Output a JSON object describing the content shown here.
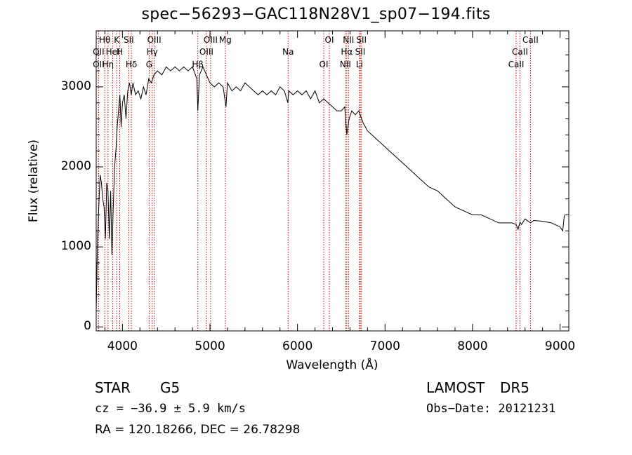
{
  "chart_data": {
    "type": "line",
    "title": "spec−56293−GAC118N28V1_sp07−194.fits",
    "xlabel": "Wavelength (Å)",
    "ylabel": "Flux (relative)",
    "xlim": [
      3700,
      9100
    ],
    "ylim": [
      -50,
      3700
    ],
    "xticks": [
      4000,
      5000,
      6000,
      7000,
      8000,
      9000
    ],
    "yticks": [
      0,
      1000,
      2000,
      3000
    ],
    "grid": false,
    "series": [
      {
        "x": [
          3700,
          3715,
          3730,
          3745,
          3760,
          3775,
          3790,
          3805,
          3820,
          3835,
          3850,
          3865,
          3880,
          3895,
          3910,
          3925,
          3940,
          3955,
          3970,
          3985,
          4000,
          4020,
          4040,
          4060,
          4080,
          4100,
          4120,
          4150,
          4180,
          4210,
          4240,
          4270,
          4300,
          4330,
          4360,
          4400,
          4450,
          4500,
          4550,
          4600,
          4650,
          4700,
          4750,
          4800,
          4850,
          4861,
          4880,
          4920,
          4960,
          5000,
          5050,
          5100,
          5150,
          5183,
          5200,
          5250,
          5300,
          5350,
          5400,
          5450,
          5500,
          5550,
          5600,
          5650,
          5700,
          5750,
          5800,
          5850,
          5890,
          5900,
          5950,
          6000,
          6050,
          6100,
          6150,
          6200,
          6250,
          6300,
          6350,
          6400,
          6450,
          6500,
          6540,
          6563,
          6590,
          6620,
          6660,
          6700,
          6750,
          6800,
          6850,
          6900,
          6950,
          7000,
          7100,
          7200,
          7300,
          7400,
          7500,
          7600,
          7700,
          7800,
          7900,
          8000,
          8100,
          8200,
          8300,
          8400,
          8450,
          8498,
          8520,
          8542,
          8560,
          8600,
          8662,
          8700,
          8800,
          8900,
          9000,
          9030,
          9050
        ],
        "y": [
          200,
          1100,
          1500,
          1900,
          1800,
          1600,
          1500,
          1100,
          1800,
          1700,
          1100,
          1700,
          900,
          1500,
          2000,
          2200,
          2500,
          2700,
          2900,
          2500,
          2800,
          2900,
          2600,
          2950,
          3050,
          2900,
          3050,
          2900,
          2950,
          2850,
          3000,
          2900,
          3100,
          3050,
          3150,
          3200,
          3150,
          3250,
          3200,
          3250,
          3200,
          3250,
          3200,
          3250,
          3100,
          2700,
          3150,
          3250,
          3150,
          3050,
          3000,
          3050,
          3000,
          2750,
          3050,
          2950,
          3000,
          2950,
          3050,
          3000,
          2950,
          2900,
          2950,
          2900,
          2950,
          2900,
          3000,
          2950,
          2800,
          2950,
          2900,
          2950,
          2900,
          2950,
          2850,
          2950,
          2800,
          2850,
          2800,
          2750,
          2700,
          2700,
          2750,
          2400,
          2600,
          2700,
          2650,
          2700,
          2550,
          2450,
          2400,
          2350,
          2300,
          2250,
          2150,
          2050,
          1950,
          1850,
          1750,
          1700,
          1600,
          1500,
          1450,
          1400,
          1400,
          1350,
          1300,
          1300,
          1300,
          1280,
          1220,
          1310,
          1280,
          1350,
          1300,
          1330,
          1320,
          1300,
          1250,
          1200,
          1400
        ]
      }
    ],
    "lines": [
      {
        "name": "Hθ",
        "x": 3798
      },
      {
        "name": "OII",
        "x": 3727
      },
      {
        "name": "OII",
        "x": 3727
      },
      {
        "name": "K",
        "x": 3934
      },
      {
        "name": "HeI",
        "x": 3889
      },
      {
        "name": "Hη",
        "x": 3835
      },
      {
        "name": "SII",
        "x": 4072
      },
      {
        "name": "H",
        "x": 3969
      },
      {
        "name": "Hδ",
        "x": 4102
      },
      {
        "name": "OIII",
        "x": 4363
      },
      {
        "name": "Hγ",
        "x": 4340
      },
      {
        "name": "G",
        "x": 4305
      },
      {
        "name": "OIII",
        "x": 5007
      },
      {
        "name": "OIII",
        "x": 4959
      },
      {
        "name": "Hβ",
        "x": 4861
      },
      {
        "name": "Mg",
        "x": 5175
      },
      {
        "name": "Na",
        "x": 5893
      },
      {
        "name": "OI",
        "x": 6300
      },
      {
        "name": "OI",
        "x": 6364
      },
      {
        "name": "Hα",
        "x": 6563
      },
      {
        "name": "NII",
        "x": 6548
      },
      {
        "name": "NII",
        "x": 6583
      },
      {
        "name": "SII",
        "x": 6717
      },
      {
        "name": "Li",
        "x": 6708
      },
      {
        "name": "SII",
        "x": 6731
      },
      {
        "name": "CaII",
        "x": 8542
      },
      {
        "name": "CaII",
        "x": 8498
      },
      {
        "name": "CaII",
        "x": 8662
      }
    ]
  },
  "info": {
    "class_label": "STAR",
    "subclass": "G5",
    "survey": "LAMOST",
    "release": "DR5",
    "cz_text": "cz = −36.9 ± 5.9 km/s",
    "obs_date": "Obs−Date: 20121231",
    "radec_text": "RA = 120.18266, DEC =  26.78298"
  },
  "colors": {
    "spectrum": "#000000",
    "line_marker": "#c00000",
    "axes": "#000000"
  }
}
